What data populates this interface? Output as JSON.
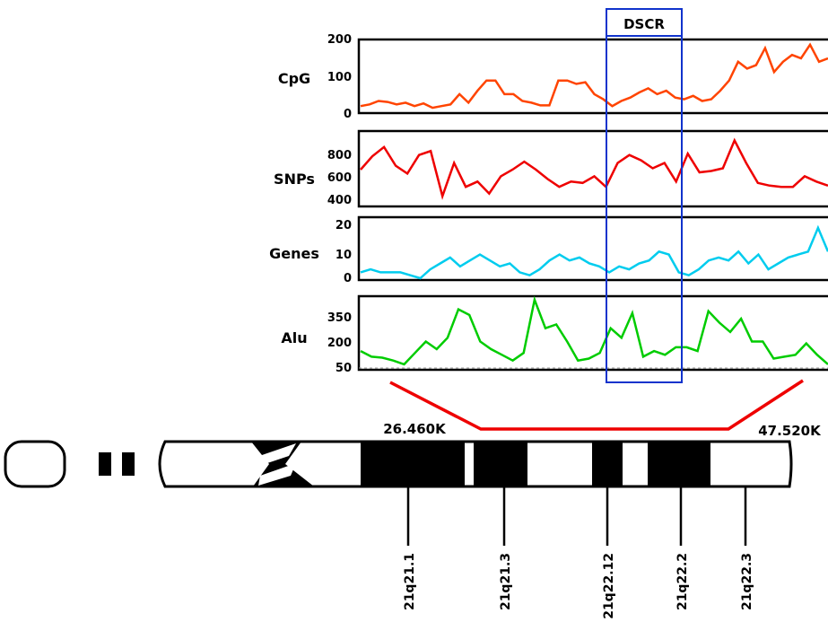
{
  "dscr_label": "DSCR",
  "colors": {
    "cpg": "#ff4400",
    "snps": "#ee0000",
    "genes": "#00ccee",
    "alu": "#00cc00",
    "dscr_box": "#1133cc",
    "zoom": "#ee0000"
  },
  "chart_data": {
    "type": "line",
    "panels": [
      {
        "name": "CpG",
        "ticks": [
          "200",
          "100",
          "0"
        ],
        "ylim": [
          0,
          200
        ],
        "values": [
          10,
          15,
          25,
          22,
          15,
          20,
          10,
          18,
          5,
          10,
          15,
          45,
          20,
          55,
          85,
          85,
          45,
          45,
          25,
          20,
          12,
          12,
          85,
          85,
          75,
          80,
          45,
          30,
          10,
          25,
          35,
          50,
          62,
          45,
          55,
          35,
          30,
          40,
          25,
          30,
          55,
          85,
          140,
          120,
          130,
          180,
          110,
          140,
          160,
          150,
          190,
          140,
          150
        ]
      },
      {
        "name": "SNPs",
        "ticks": [
          "800",
          "600",
          "400"
        ],
        "ylim": [
          400,
          900
        ],
        "values": [
          650,
          750,
          820,
          680,
          620,
          760,
          790,
          450,
          700,
          520,
          560,
          470,
          600,
          650,
          710,
          650,
          580,
          520,
          560,
          550,
          600,
          520,
          700,
          760,
          720,
          660,
          700,
          560,
          770,
          630,
          640,
          660,
          870,
          700,
          550,
          530,
          520,
          520,
          600,
          560,
          530
        ]
      },
      {
        "name": "Genes",
        "ticks": [
          "20",
          "10",
          "0"
        ],
        "ylim": [
          0,
          20
        ],
        "values": [
          2,
          3,
          2,
          2,
          2,
          1,
          0,
          3,
          5,
          7,
          4,
          6,
          8,
          6,
          4,
          5,
          2,
          1,
          3,
          6,
          8,
          6,
          7,
          5,
          4,
          2,
          4,
          3,
          5,
          6,
          9,
          8,
          2,
          1,
          3,
          6,
          7,
          6,
          9,
          5,
          8,
          3,
          5,
          7,
          8,
          9,
          17,
          9
        ]
      },
      {
        "name": "Alu",
        "ticks": [
          "350",
          "200",
          "50"
        ],
        "ylim": [
          50,
          400
        ],
        "values": [
          130,
          100,
          95,
          80,
          60,
          120,
          180,
          140,
          200,
          350,
          320,
          180,
          140,
          110,
          80,
          120,
          420,
          250,
          270,
          180,
          80,
          90,
          120,
          250,
          200,
          330,
          100,
          130,
          110,
          150,
          150,
          130,
          340,
          280,
          230,
          300,
          180,
          180,
          90,
          100,
          110,
          170,
          110,
          60
        ]
      }
    ]
  },
  "chromosome": {
    "coord_left": "26.460K",
    "coord_right": "47.520K",
    "bands": [
      "21q21.1",
      "21q21.3",
      "21q22.12",
      "21q22.2",
      "21q22.3"
    ]
  }
}
